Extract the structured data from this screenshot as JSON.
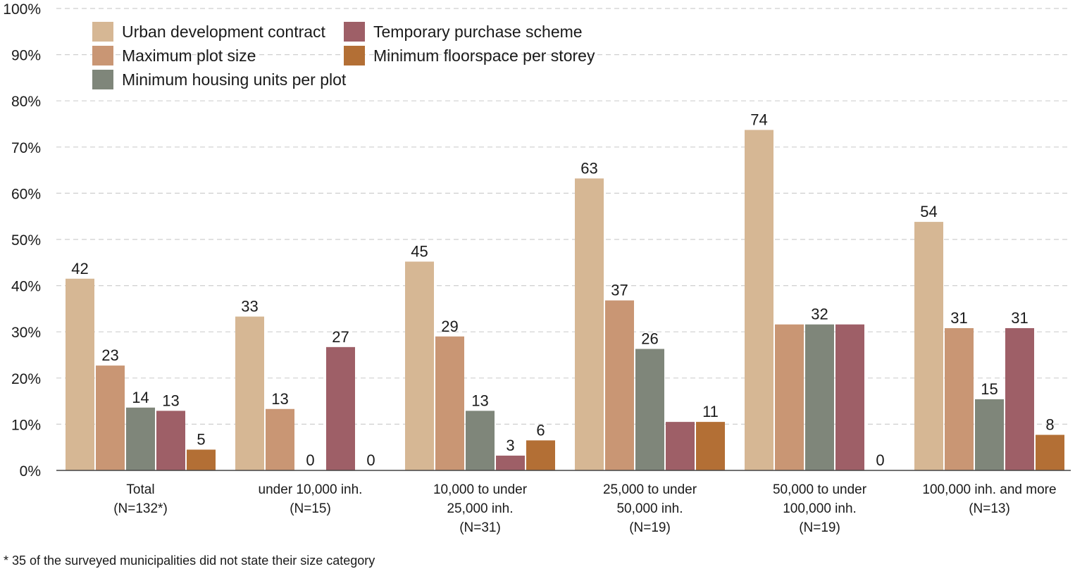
{
  "chart_data": {
    "type": "bar",
    "categories": [
      [
        "Total",
        "(N=132*)"
      ],
      [
        "under 10,000 inh.",
        "(N=15)"
      ],
      [
        "10,000 to under",
        "25,000 inh.",
        "(N=31)"
      ],
      [
        "25,000 to under",
        "50,000 inh.",
        "(N=19)"
      ],
      [
        "50,000 to under",
        "100,000 inh.",
        "(N=19)"
      ],
      [
        "100,000 inh. and more",
        "(N=13)"
      ]
    ],
    "series": [
      {
        "name": "Urban development contract",
        "color": "#d6b794",
        "values": [
          41.5,
          33.3,
          45.2,
          63.2,
          73.7,
          53.8
        ],
        "labels": [
          "42",
          "33",
          "45",
          "63",
          "74",
          "54"
        ]
      },
      {
        "name": "Maximum plot size",
        "color": "#c99674",
        "values": [
          22.7,
          13.3,
          29.0,
          36.8,
          31.6,
          30.8
        ],
        "labels": [
          "23",
          "13",
          "29",
          "37",
          "",
          "31"
        ]
      },
      {
        "name": "Minimum housing units per plot",
        "color": "#7f867a",
        "values": [
          13.6,
          0,
          12.9,
          26.3,
          31.6,
          15.4
        ],
        "labels": [
          "14",
          "0",
          "13",
          "26",
          "32",
          "15"
        ]
      },
      {
        "name": "Temporary purchase scheme",
        "color": "#9e5f67",
        "values": [
          12.9,
          26.7,
          3.2,
          10.5,
          31.6,
          30.8
        ],
        "labels": [
          "13",
          "27",
          "3",
          "",
          "",
          "31"
        ]
      },
      {
        "name": "Minimum floorspace per storey",
        "color": "#b36f35",
        "values": [
          4.5,
          0,
          6.5,
          10.5,
          0,
          7.7
        ],
        "labels": [
          "5",
          "0",
          "6",
          "11",
          "0",
          "8"
        ]
      }
    ],
    "ylim": [
      0,
      100
    ],
    "yticks": [
      0,
      10,
      20,
      30,
      40,
      50,
      60,
      70,
      80,
      90,
      100
    ],
    "ytick_labels": [
      "0%",
      "10%",
      "20%",
      "30%",
      "40%",
      "50%",
      "60%",
      "70%",
      "80%",
      "90%",
      "100%"
    ],
    "grid": true,
    "legend_position": "top-left"
  },
  "footnote": "* 35 of the surveyed municipalities did not state their size category"
}
